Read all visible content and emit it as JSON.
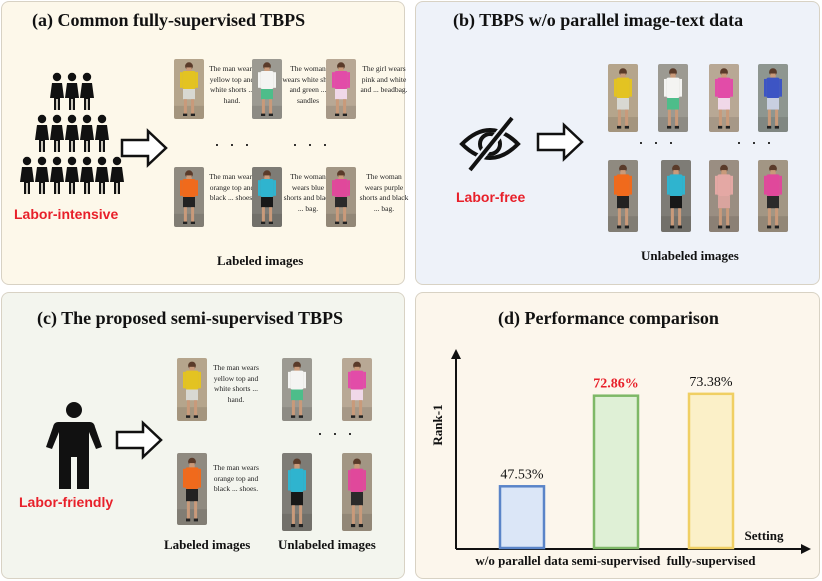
{
  "panel_a": {
    "title": "(a) Common fully-supervised TBPS",
    "labor_label": "Labor-intensive",
    "caption": "Labeled images",
    "descriptions": [
      "The man wears yellow top and white shorts ... hand.",
      "The woman wears white shirt and green ... sandles",
      "The girl wears pink and white and ... beadbag.",
      "The man wears orange top and black ... shoes.",
      "The woman wears blue shorts and black ... bag.",
      "The woman wears purple shorts and black ... bag."
    ],
    "dots": "· · ·"
  },
  "panel_b": {
    "title": "(b) TBPS w/o parallel image-text data",
    "labor_label": "Labor-free",
    "caption": "Unlabeled images",
    "dots": "· · ·"
  },
  "panel_c": {
    "title": "(c) The proposed semi-supervised TBPS",
    "labor_label": "Labor-friendly",
    "caption_labeled": "Labeled images",
    "caption_unlabeled": "Unlabeled images",
    "descriptions": [
      "The man wears yellow top and white shorts ... hand.",
      "The man wears orange top and black ... shoes."
    ],
    "dots": "· · ·"
  },
  "panel_d": {
    "title": "(d) Performance comparison"
  },
  "chart_data": {
    "type": "bar",
    "title": "(d) Performance comparison",
    "categories": [
      "w/o parallel data",
      "semi-supervised",
      "fully-supervised"
    ],
    "values": [
      47.53,
      72.86,
      73.38
    ],
    "value_labels": [
      "47.53%",
      "72.86%",
      "73.38%"
    ],
    "ylabel": "Rank-1",
    "xlabel": "Setting",
    "ylim": [
      30,
      82
    ],
    "grid": false,
    "bar_fill_colors": [
      "#dbe6f7",
      "#dff0d6",
      "#fbf0c8"
    ],
    "bar_edge_colors": [
      "#5a84c8",
      "#7eb867",
      "#f0cf63"
    ],
    "highlight_color": "#e8202a",
    "highlight_index": 1
  }
}
